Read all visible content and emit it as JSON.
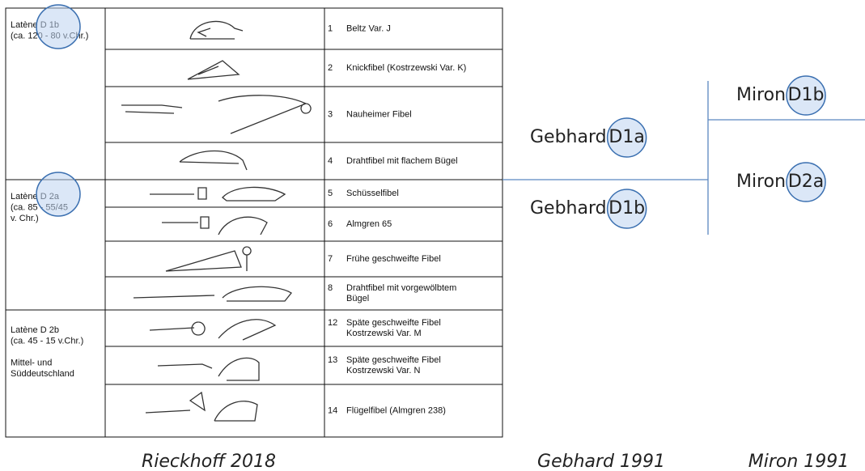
{
  "table": {
    "phases": [
      {
        "lines": [
          "Latène D 1b",
          "(ca. 120 - 80 v.Chr.)"
        ]
      },
      {
        "lines": [
          "Latène D 2a",
          "(ca. 85 - 55/45",
          "v. Chr.)"
        ]
      },
      {
        "lines": [
          "Latène D 2b",
          "(ca. 45 - 15 v.Chr.)",
          "",
          "Mittel- und",
          "Süddeutschland"
        ]
      }
    ],
    "rows": [
      {
        "number": "1",
        "name": [
          "Beltz Var. J"
        ]
      },
      {
        "number": "2",
        "name": [
          "Knickfibel (Kostrzewski Var. K)"
        ]
      },
      {
        "number": "3",
        "name": [
          "Nauheimer Fibel"
        ]
      },
      {
        "number": "4",
        "name": [
          "Drahtfibel mit flachem Bügel"
        ]
      },
      {
        "number": "5",
        "name": [
          "Schüsselfibel"
        ]
      },
      {
        "number": "6",
        "name": [
          "Almgren 65"
        ]
      },
      {
        "number": "7",
        "name": [
          "Frühe geschweifte Fibel"
        ]
      },
      {
        "number": "8",
        "name": [
          "Drahtfibel mit vorgewölbtem",
          "Bügel"
        ]
      },
      {
        "number": "12",
        "name": [
          "Späte geschweifte Fibel",
          "Kostrzewski Var. M"
        ]
      },
      {
        "number": "13",
        "name": [
          "Späte geschweifte Fibel",
          "Kostrzewski Var. N"
        ]
      },
      {
        "number": "14",
        "name": [
          "Flügelfibel (Almgren 238)"
        ]
      }
    ]
  },
  "labels": [
    {
      "author": "Gebhard",
      "phase": "D1a"
    },
    {
      "author": "Gebhard",
      "phase": "D1b"
    },
    {
      "author": "Miron",
      "phase": "D1b"
    },
    {
      "author": "Miron",
      "phase": "D2a"
    }
  ],
  "captions": [
    "Rieckhoff 2018",
    "Gebhard 1991",
    "Miron 1991"
  ]
}
